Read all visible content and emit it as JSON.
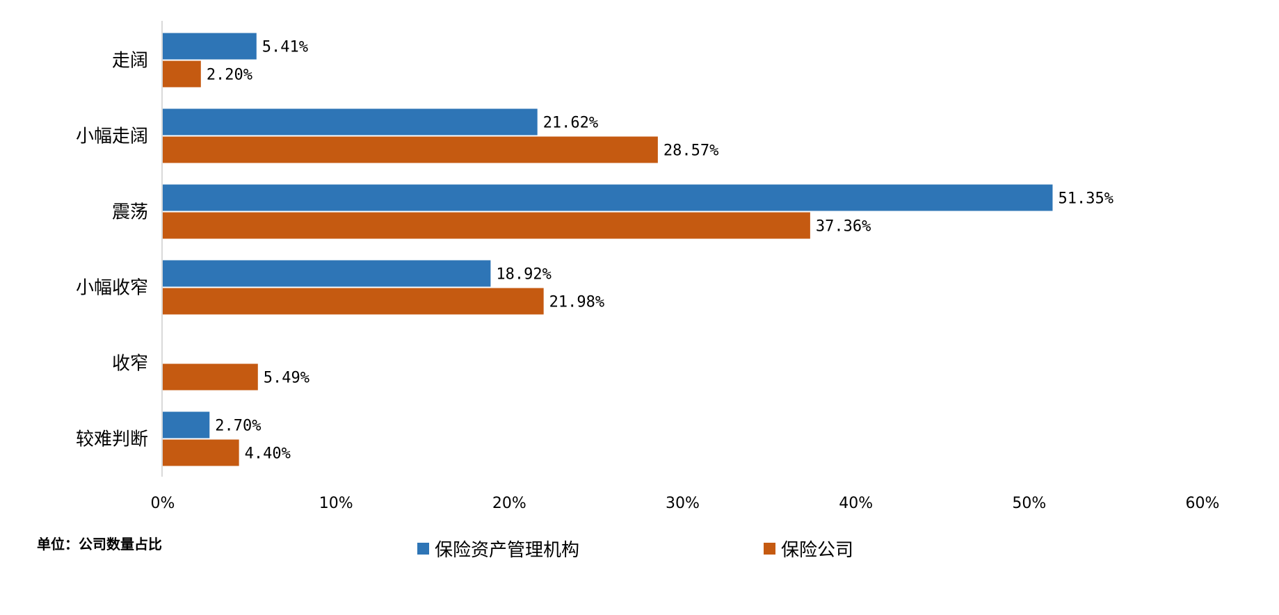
{
  "chart_data": {
    "type": "bar",
    "orientation": "horizontal",
    "categories": [
      "走阔",
      "小幅走阔",
      "震荡",
      "小幅收窄",
      "收窄",
      "较难判断"
    ],
    "series": [
      {
        "name": "保险资产管理机构",
        "color": "#2E75B6",
        "values": [
          5.41,
          21.62,
          51.35,
          18.92,
          0,
          2.7
        ],
        "labels": [
          "5.41%",
          "21.62%",
          "51.35%",
          "18.92%",
          "",
          "2.70%"
        ]
      },
      {
        "name": "保险公司",
        "color": "#C55A11",
        "values": [
          2.2,
          28.57,
          37.36,
          21.98,
          5.49,
          4.4
        ],
        "labels": [
          "2.20%",
          "28.57%",
          "37.36%",
          "21.98%",
          "5.49%",
          "4.40%"
        ]
      }
    ],
    "xlim": [
      0,
      60
    ],
    "xticks": [
      "0%",
      "10%",
      "20%",
      "30%",
      "40%",
      "50%",
      "60%"
    ],
    "grid": false,
    "legend": "bottom",
    "unit_note": "单位：公司数量占比"
  }
}
